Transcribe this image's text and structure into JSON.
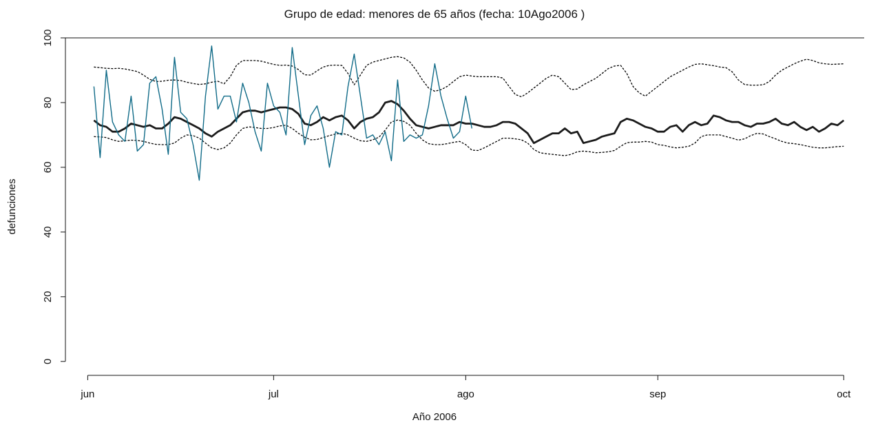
{
  "chart_data": {
    "type": "line",
    "title": "Grupo de edad: menores de 65 años (fecha: 10Ago2006 )",
    "xlabel": "Año 2006",
    "ylabel": "defunciones",
    "x": [
      1,
      2,
      3,
      4,
      5,
      6,
      7,
      8,
      9,
      10,
      11,
      12,
      13,
      14,
      15,
      16,
      17,
      18,
      19,
      20,
      21,
      22,
      23,
      24,
      25,
      26,
      27,
      28,
      29,
      30,
      31,
      32,
      33,
      34,
      35,
      36,
      37,
      38,
      39,
      40,
      41,
      42,
      43,
      44,
      45,
      46,
      47,
      48,
      49,
      50,
      51,
      52,
      53,
      54,
      55,
      56,
      57,
      58,
      59,
      60,
      61,
      62,
      63,
      64,
      65,
      66,
      67,
      68,
      69,
      70,
      71,
      72,
      73,
      74,
      75,
      76,
      77,
      78,
      79,
      80,
      81,
      82,
      83,
      84,
      85,
      86,
      87,
      88,
      89,
      90,
      91,
      92,
      93,
      94,
      95,
      96,
      97,
      98,
      99,
      100,
      101,
      102,
      103,
      104,
      105,
      106,
      107,
      108,
      109,
      110,
      111,
      112,
      113,
      114,
      115,
      116,
      117,
      118,
      119,
      120,
      121,
      122
    ],
    "xlim": [
      -3.6,
      125.3
    ],
    "xticks": [
      {
        "value": 0,
        "label": "jun"
      },
      {
        "value": 30,
        "label": "jul"
      },
      {
        "value": 61,
        "label": "ago"
      },
      {
        "value": 92,
        "label": "sep"
      },
      {
        "value": 122,
        "label": "oct"
      }
    ],
    "ylim": [
      -4.3,
      100
    ],
    "yticks": [
      0,
      20,
      40,
      60,
      80,
      100
    ],
    "series": [
      {
        "color": "#000000",
        "style": "dotted",
        "values": [
          91,
          90.8,
          90.6,
          90.5,
          90.6,
          90.4,
          90,
          89.6,
          88.5,
          87.2,
          86.5,
          86.6,
          86.9,
          87,
          86.8,
          86.3,
          85.9,
          85.6,
          85.8,
          86.3,
          86.6,
          85.8,
          88,
          91.5,
          93,
          93,
          93,
          92.8,
          92.3,
          91.8,
          91.5,
          91.6,
          91.3,
          90.2,
          88.6,
          88.5,
          89.8,
          91,
          91.5,
          91.6,
          91.5,
          89,
          85.5,
          88.5,
          91.5,
          92.5,
          93,
          93.5,
          94,
          94.2,
          93.8,
          92.5,
          90,
          87,
          84.5,
          83.5,
          84,
          85,
          86.5,
          88,
          88.5,
          88.2,
          88,
          88,
          88,
          88,
          87.6,
          85,
          82.5,
          81.8,
          83,
          84.5,
          86,
          87.5,
          88.5,
          88,
          86,
          84,
          84.2,
          85.5,
          86.5,
          87.5,
          89,
          90.5,
          91.3,
          91.5,
          89,
          85,
          83,
          82,
          83.5,
          85,
          86.5,
          88,
          89,
          90,
          91,
          91.8,
          92,
          91.7,
          91.4,
          91,
          90.8,
          89.5,
          87,
          85.6,
          85.4,
          85.4,
          85.5,
          86.5,
          88.5,
          90,
          91,
          92,
          92.8,
          93.4,
          93,
          92.3,
          92,
          91.8,
          91.9,
          92
        ]
      },
      {
        "color": "#000000",
        "style": "dotted",
        "values": [
          69.5,
          69.4,
          69.2,
          68.5,
          68,
          68.2,
          68.4,
          68.3,
          68,
          67.5,
          67.1,
          67,
          67,
          67.5,
          69,
          70,
          69.8,
          69,
          67.5,
          66,
          65.5,
          66,
          67.5,
          70,
          72,
          72.5,
          72.3,
          72,
          72,
          72.3,
          72.8,
          73,
          72,
          70.5,
          69.3,
          68.5,
          68.6,
          69.2,
          69.8,
          70.3,
          70.5,
          70,
          69,
          68.2,
          68,
          68.5,
          69.3,
          71.5,
          74,
          74.6,
          74.2,
          73,
          70.5,
          68.5,
          67.3,
          67,
          67,
          67.3,
          67.7,
          68,
          67,
          65.3,
          65.2,
          66,
          67,
          68,
          69,
          69,
          68.8,
          68.5,
          67.5,
          65.5,
          64.5,
          64.2,
          64,
          63.8,
          63.6,
          64,
          64.8,
          65,
          64.8,
          64.5,
          64.6,
          64.8,
          65.2,
          66.5,
          67.6,
          67.8,
          67.8,
          68,
          67.8,
          67,
          66.8,
          66.3,
          66,
          66.2,
          66.5,
          67.5,
          69.5,
          70,
          70,
          70,
          69.5,
          69,
          68.4,
          68.8,
          69.8,
          70.5,
          70.3,
          69.5,
          68.8,
          68,
          67.5,
          67.3,
          67,
          66.6,
          66.2,
          66,
          66,
          66.2,
          66.4,
          66.5
        ]
      },
      {
        "color": "#1b1b1b",
        "style": "thick",
        "values": [
          74.5,
          73,
          72.5,
          71,
          71,
          72,
          73.5,
          73,
          72.5,
          73,
          72,
          72,
          73.5,
          75.5,
          75,
          74,
          73,
          72,
          70.5,
          69.5,
          71,
          72,
          73,
          75,
          77,
          77.5,
          77.5,
          77,
          77.5,
          78,
          78.5,
          78.5,
          78,
          76.5,
          73.5,
          73,
          74,
          75.5,
          74.5,
          75.5,
          76,
          74.5,
          72,
          74,
          75,
          75.5,
          77,
          80,
          80.5,
          79.5,
          77.5,
          75,
          73,
          72.5,
          72,
          72.5,
          73,
          73,
          73,
          74,
          73.5,
          73.5,
          73,
          72.5,
          72.5,
          73,
          74,
          74,
          73.5,
          72,
          70.5,
          67.5,
          68.5,
          69.5,
          70.5,
          70.5,
          72,
          70.5,
          71,
          67.5,
          68,
          68.5,
          69.5,
          70,
          70.5,
          74,
          75,
          74.5,
          73.5,
          72.5,
          72,
          71,
          71,
          72.5,
          73,
          71,
          73,
          74,
          73,
          73.5,
          76,
          75.5,
          74.5,
          74,
          74,
          73,
          72.5,
          73.5,
          73.5,
          74,
          75,
          73.5,
          73,
          74,
          72.5,
          71.5,
          72.5,
          71,
          72,
          73.5,
          73,
          74.5
        ]
      },
      {
        "color": "#0f6a87",
        "style": "solid",
        "values": [
          85,
          63,
          90,
          74,
          70,
          68,
          82,
          65,
          67,
          86,
          88,
          78,
          64,
          94,
          77,
          75,
          67,
          56,
          82,
          97.5,
          78,
          82,
          82,
          74,
          86,
          80,
          71,
          65,
          86,
          79,
          77,
          70,
          97,
          82,
          67,
          76,
          79,
          72,
          60,
          71,
          70,
          85,
          95,
          82,
          69,
          70,
          67,
          71,
          62,
          87,
          68,
          70,
          69,
          70,
          79,
          92,
          82,
          75,
          69,
          71,
          82,
          72,
          null,
          null,
          null,
          null,
          null,
          null,
          null,
          null,
          null,
          null,
          null,
          null,
          null,
          null,
          null,
          null,
          null,
          null,
          null,
          null,
          null,
          null,
          null,
          null,
          null,
          null,
          null,
          null,
          null,
          null,
          null,
          null,
          null,
          null,
          null,
          null,
          null,
          null,
          null,
          null,
          null,
          null,
          null,
          null,
          null,
          null,
          null,
          null,
          null,
          null,
          null,
          null,
          null,
          null,
          null,
          null,
          null,
          null,
          null,
          null
        ]
      }
    ]
  }
}
